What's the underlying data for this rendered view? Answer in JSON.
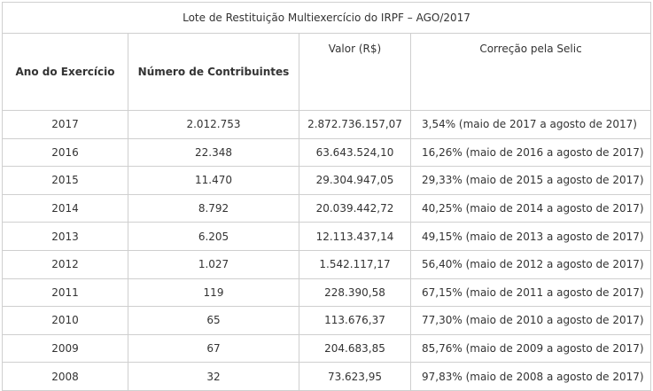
{
  "table": {
    "caption": "Lote de Restituição Multiexercício do IRPF – AGO/2017",
    "headers": {
      "ano": "Ano do Exercício",
      "contribuintes": "Número de Contribuintes",
      "valor": "Valor (R$)",
      "correcao": "Correção pela Selic"
    },
    "rows": [
      {
        "ano": "2017",
        "contribuintes": "2.012.753",
        "valor": "2.872.736.157,07",
        "correcao": "3,54% (maio de 2017 a agosto de 2017)"
      },
      {
        "ano": "2016",
        "contribuintes": "22.348",
        "valor": "63.643.524,10",
        "correcao": "16,26% (maio de 2016 a agosto de 2017)"
      },
      {
        "ano": "2015",
        "contribuintes": "11.470",
        "valor": "29.304.947,05",
        "correcao": "29,33% (maio de 2015 a agosto de 2017)"
      },
      {
        "ano": "2014",
        "contribuintes": "8.792",
        "valor": "20.039.442,72",
        "correcao": "40,25% (maio de 2014 a agosto  de 2017)"
      },
      {
        "ano": "2013",
        "contribuintes": "6.205",
        "valor": "12.113.437,14",
        "correcao": "49,15% (maio de 2013 a agosto de 2017)"
      },
      {
        "ano": "2012",
        "contribuintes": "1.027",
        "valor": "1.542.117,17",
        "correcao": "56,40% (maio de 2012 a agosto de 2017)"
      },
      {
        "ano": "2011",
        "contribuintes": "119",
        "valor": "228.390,58",
        "correcao": "67,15% (maio de 2011 a  agosto de 2017)"
      },
      {
        "ano": "2010",
        "contribuintes": "65",
        "valor": "113.676,37",
        "correcao": "77,30% (maio de 2010 a agosto de 2017)"
      },
      {
        "ano": "2009",
        "contribuintes": "67",
        "valor": "204.683,85",
        "correcao": "85,76% (maio de 2009 a agosto de 2017)"
      },
      {
        "ano": "2008",
        "contribuintes": "32",
        "valor": "73.623,95",
        "correcao": "97,83% (maio de 2008 a agosto de 2017)"
      }
    ]
  }
}
